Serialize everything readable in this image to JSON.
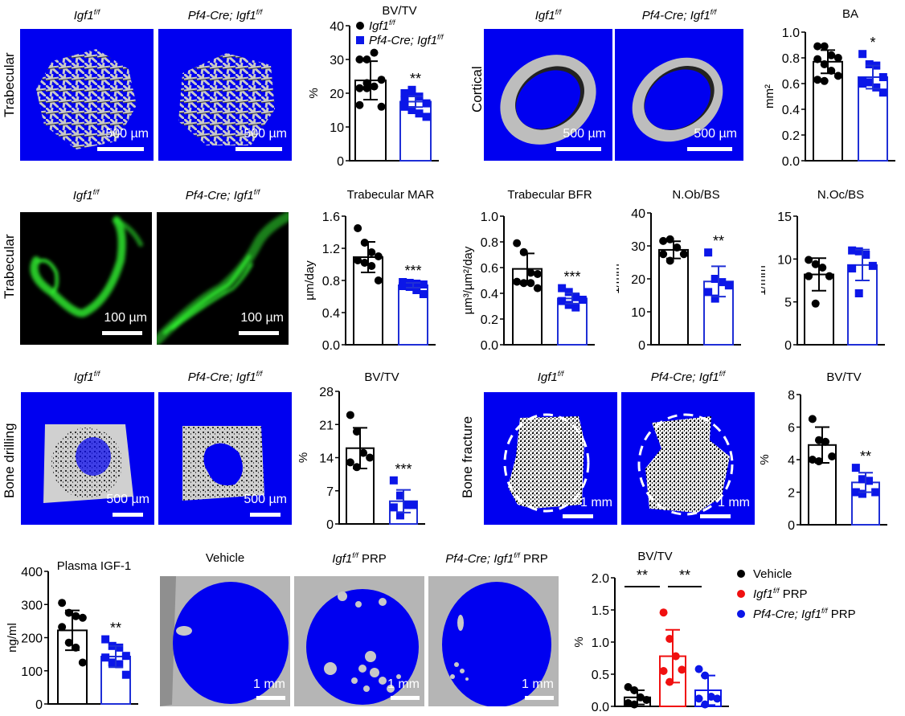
{
  "figure": {
    "row_labels": [
      "Trabecular",
      "Cortical",
      "Trabecular",
      "Bone drilling",
      "Bone fracture"
    ],
    "genotypes": {
      "control": "Igf1",
      "control_sup": "f/f",
      "mutant": "Pf4-Cre; Igf1",
      "mutant_sup": "f/f"
    },
    "image_titles": {
      "vehicle": "Vehicle",
      "igf_prp": "PRP",
      "pf4_prp": "PRP"
    },
    "scale_bars": {
      "um500": "500 µm",
      "um100": "100 µm",
      "mm1": "1 mm"
    },
    "colors": {
      "ct_blue": "#0000F0",
      "bar_blue": "#1F2FD6",
      "point_blue": "#0B16E8",
      "red": "#F01010",
      "green": "#2EE82E",
      "black": "#000000"
    }
  },
  "chart_data": [
    {
      "id": "trab_bvtv",
      "type": "bar",
      "title": "BV/TV",
      "ylabel": "%",
      "ylim": [
        0,
        40
      ],
      "yticks": [
        "0",
        "10",
        "20",
        "30",
        "40"
      ],
      "legend": [
        {
          "label": "Igf1",
          "sup": "f/f",
          "marker": "circle",
          "color": "#000000"
        },
        {
          "label": "Pf4-Cre; Igf1",
          "sup": "f/f",
          "marker": "square",
          "color": "#0B16E8"
        }
      ],
      "series": [
        {
          "name": "Igf1 f/f",
          "mean": 23.8,
          "sd": 5.7,
          "points": [
            30,
            30,
            32,
            24,
            21.5,
            21.5,
            22,
            16,
            16.5,
            23
          ]
        },
        {
          "name": "Pf4-Cre; Igf1 f/f",
          "mean": 17.5,
          "sd": 1.6,
          "points": [
            20,
            21,
            19,
            17,
            16,
            15,
            14,
            13,
            18,
            20
          ]
        }
      ],
      "significance": "**"
    },
    {
      "id": "cort_ba",
      "type": "bar",
      "title": "BA",
      "ylabel": "mm²",
      "ylim": [
        0,
        1.0
      ],
      "yticks": [
        "0.0",
        "0.2",
        "0.4",
        "0.6",
        "0.8",
        "1.0"
      ],
      "series": [
        {
          "name": "Igf1 f/f",
          "mean": 0.77,
          "sd": 0.09,
          "points": [
            0.89,
            0.89,
            0.82,
            0.8,
            0.79,
            0.75,
            0.7,
            0.66,
            0.63,
            0.62
          ]
        },
        {
          "name": "Pf4-Cre; Igf1 f/f",
          "mean": 0.65,
          "sd": 0.09,
          "points": [
            0.83,
            0.75,
            0.74,
            0.65,
            0.62,
            0.61,
            0.57,
            0.53,
            0.6
          ]
        }
      ],
      "significance": "*"
    },
    {
      "id": "trab_mar",
      "type": "bar",
      "title": "Trabecular  MAR",
      "ylabel": "µm/day",
      "ylim": [
        0,
        1.6
      ],
      "yticks": [
        "0.0",
        "0.4",
        "0.8",
        "1.2",
        "1.6"
      ],
      "series": [
        {
          "name": "Igf1 f/f",
          "mean": 1.09,
          "sd": 0.19,
          "points": [
            1.45,
            1.27,
            1.15,
            1.1,
            1.05,
            1.02,
            0.98,
            0.8
          ]
        },
        {
          "name": "Pf4-Cre; Igf1 f/f",
          "mean": 0.74,
          "sd": 0.03,
          "points": [
            0.78,
            0.77,
            0.76,
            0.75,
            0.73,
            0.72,
            0.68,
            0.63
          ]
        }
      ],
      "significance": "***"
    },
    {
      "id": "trab_bfr",
      "type": "bar",
      "title": "Trabecular  BFR",
      "ylabel": "µm³/µm²/day",
      "ylim": [
        0,
        1.0
      ],
      "yticks": [
        "0.0",
        "0.2",
        "0.4",
        "0.6",
        "0.8",
        "1.0"
      ],
      "series": [
        {
          "name": "Igf1 f/f",
          "mean": 0.59,
          "sd": 0.12,
          "points": [
            0.79,
            0.72,
            0.56,
            0.55,
            0.49,
            0.48,
            0.48,
            0.44
          ]
        },
        {
          "name": "Pf4-Cre; Igf1 f/f",
          "mean": 0.36,
          "sd": 0.04,
          "points": [
            0.44,
            0.41,
            0.37,
            0.35,
            0.34,
            0.31,
            0.29
          ]
        }
      ],
      "significance": "***"
    },
    {
      "id": "nob_bs",
      "type": "bar",
      "title": "N.Ob/BS",
      "ylabel": "1/mm",
      "ylim": [
        0,
        40
      ],
      "yticks": [
        "0",
        "10",
        "20",
        "30",
        "40"
      ],
      "series": [
        {
          "name": "Igf1 f/f",
          "mean": 28.8,
          "sd": 2.6,
          "points": [
            31.5,
            32,
            29.5,
            27.5,
            27.5,
            25.5
          ]
        },
        {
          "name": "Pf4-Cre; Igf1 f/f",
          "mean": 19.2,
          "sd": 4.6,
          "points": [
            28,
            20,
            19,
            18,
            16,
            14
          ]
        }
      ],
      "significance": "**"
    },
    {
      "id": "noc_bs",
      "type": "bar",
      "title": "N.Oc/BS",
      "ylabel": "1/mm",
      "ylim": [
        0,
        15
      ],
      "yticks": [
        "0",
        "5",
        "10",
        "15"
      ],
      "series": [
        {
          "name": "Igf1 f/f",
          "mean": 8.2,
          "sd": 1.9,
          "points": [
            9.9,
            9.4,
            9.0,
            8.0,
            8.0,
            4.8
          ]
        },
        {
          "name": "Pf4-Cre; Igf1 f/f",
          "mean": 9.3,
          "sd": 1.8,
          "points": [
            11.0,
            10.9,
            10.5,
            9.2,
            8.9,
            6.0
          ]
        }
      ],
      "significance": ""
    },
    {
      "id": "drill_bvtv",
      "type": "bar",
      "title": "BV/TV",
      "ylabel": "%",
      "ylim": [
        0,
        28
      ],
      "yticks": [
        "0",
        "7",
        "14",
        "21",
        "28"
      ],
      "series": [
        {
          "name": "Igf1 f/f",
          "mean": 16.0,
          "sd": 4.3,
          "points": [
            23,
            19.5,
            15,
            14,
            13,
            12
          ]
        },
        {
          "name": "Pf4-Cre; Igf1 f/f",
          "mean": 4.8,
          "sd": 2.4,
          "points": [
            9.2,
            6.0,
            4.0,
            4.0,
            3.5,
            1.8
          ]
        }
      ],
      "significance": "***"
    },
    {
      "id": "fracture_bvtv",
      "type": "bar",
      "title": "BV/TV",
      "ylabel": "%",
      "ylim": [
        0,
        8
      ],
      "yticks": [
        "0",
        "2",
        "4",
        "6",
        "8"
      ],
      "series": [
        {
          "name": "Igf1 f/f",
          "mean": 4.9,
          "sd": 1.1,
          "points": [
            6.5,
            5.2,
            5.1,
            4.2,
            4.0,
            3.9
          ]
        },
        {
          "name": "Pf4-Cre; Igf1 f/f",
          "mean": 2.6,
          "sd": 0.6,
          "points": [
            3.5,
            2.8,
            2.7,
            2.0,
            2.0,
            1.9
          ]
        }
      ],
      "significance": "**"
    },
    {
      "id": "plasma_igf1",
      "type": "bar",
      "title": "Plasma IGF-1",
      "ylabel": "ng/ml",
      "ylim": [
        0,
        400
      ],
      "yticks": [
        "0",
        "100",
        "200",
        "300",
        "400"
      ],
      "series": [
        {
          "name": "Igf1 f/f",
          "mean": 222,
          "sd": 60,
          "points": [
            305,
            275,
            265,
            260,
            232,
            185,
            170,
            125
          ]
        },
        {
          "name": "Pf4-Cre; Igf1 f/f",
          "mean": 143,
          "sd": 32,
          "points": [
            195,
            175,
            170,
            145,
            140,
            125,
            120,
            88
          ]
        }
      ],
      "significance": "**"
    },
    {
      "id": "prp_bvtv",
      "type": "bar",
      "title": "BV/TV",
      "ylabel": "%",
      "ylim": [
        0,
        2.0
      ],
      "yticks": [
        "0.0",
        "0.5",
        "1.0",
        "1.5",
        "2.0"
      ],
      "legend": [
        {
          "label": "Vehicle",
          "sup": "",
          "suffix": "",
          "marker": "circle",
          "color": "#000000",
          "italic": false
        },
        {
          "label": "Igf1",
          "sup": "f/f",
          "suffix": " PRP",
          "marker": "circle",
          "color": "#F01010",
          "italic": true
        },
        {
          "label": "Pf4-Cre; Igf1",
          "sup": "f/f",
          "suffix": " PRP",
          "marker": "circle",
          "color": "#0B16E8",
          "italic": true
        }
      ],
      "series": [
        {
          "name": "Vehicle",
          "mean": 0.14,
          "sd": 0.11,
          "points": [
            0.3,
            0.25,
            0.14,
            0.1,
            0.05,
            0.03
          ]
        },
        {
          "name": "Igf1 f/f PRP",
          "mean": 0.78,
          "sd": 0.41,
          "points": [
            1.46,
            1.05,
            0.78,
            0.57,
            0.55,
            0.38
          ]
        },
        {
          "name": "Pf4-Cre; Igf1 f/f PRP",
          "mean": 0.25,
          "sd": 0.23,
          "points": [
            0.58,
            0.48,
            0.15,
            0.12,
            0.12,
            0.03
          ]
        }
      ],
      "brackets": [
        {
          "from": 0,
          "to": 1,
          "label": "**"
        },
        {
          "from": 1,
          "to": 2,
          "label": "**"
        }
      ]
    }
  ]
}
